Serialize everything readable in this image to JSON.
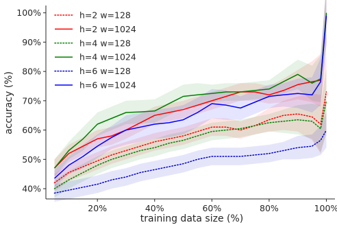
{
  "chart_data": {
    "type": "line",
    "xlabel": "training data size (%)",
    "ylabel": "accuracy (%)",
    "xlim": [
      2,
      103
    ],
    "ylim": [
      36.5,
      102.5
    ],
    "xticks": [
      20,
      40,
      60,
      80,
      100
    ],
    "xtick_labels": [
      "20%",
      "40%",
      "60%",
      "80%",
      "100%"
    ],
    "yticks": [
      40,
      50,
      60,
      70,
      80,
      90,
      100
    ],
    "ytick_labels": [
      "40%",
      "50%",
      "60%",
      "70%",
      "80%",
      "90%",
      "100%"
    ],
    "grid": false,
    "legend_position": "top-left",
    "x": [
      5,
      10,
      15,
      20,
      25,
      30,
      35,
      40,
      45,
      50,
      55,
      60,
      65,
      70,
      75,
      80,
      85,
      90,
      95,
      98,
      100
    ],
    "series": [
      {
        "name": "h=2 w=128",
        "color": "#ff0000",
        "style": "dotted",
        "values": [
          42.0,
          45.5,
          47.5,
          49.5,
          51.5,
          53.0,
          54.5,
          56.0,
          57.0,
          58.0,
          59.5,
          61.0,
          61.0,
          60.0,
          61.5,
          63.5,
          65.0,
          65.5,
          64.5,
          62.0,
          73.0
        ],
        "band": [
          3,
          3,
          3,
          3,
          3,
          3,
          3,
          3,
          3,
          3,
          3,
          3,
          3,
          3,
          3,
          4,
          5,
          6,
          8,
          10,
          14
        ]
      },
      {
        "name": "h=2 w=1024",
        "color": "#ff0000",
        "style": "solid",
        "values": [
          47.0,
          52.0,
          54.5,
          57.0,
          58.0,
          60.0,
          62.5,
          65.0,
          66.0,
          67.0,
          68.5,
          70.0,
          71.5,
          73.0,
          73.0,
          72.0,
          73.5,
          75.5,
          76.5,
          77.0,
          99.5
        ],
        "band": [
          3,
          3,
          3,
          3,
          3,
          3,
          3,
          3,
          3,
          3,
          3,
          3,
          3,
          3,
          3,
          3,
          4,
          5,
          7,
          9,
          10
        ]
      },
      {
        "name": "h=4 w=128",
        "color": "#008000",
        "style": "dotted",
        "values": [
          40.0,
          43.0,
          45.5,
          48.0,
          50.0,
          51.5,
          53.0,
          54.0,
          55.5,
          56.5,
          58.0,
          59.5,
          60.0,
          60.5,
          61.5,
          62.5,
          63.0,
          63.5,
          63.0,
          60.5,
          70.0
        ],
        "band": [
          3,
          3,
          3,
          3,
          3,
          3,
          3,
          3,
          3,
          3,
          3,
          3,
          3,
          3,
          3,
          3,
          4,
          5,
          6,
          8,
          11
        ]
      },
      {
        "name": "h=4 w=1024",
        "color": "#008000",
        "style": "solid",
        "values": [
          47.0,
          53.0,
          57.0,
          62.0,
          64.0,
          66.0,
          66.2,
          66.5,
          69.0,
          71.5,
          72.0,
          72.5,
          73.0,
          73.0,
          73.5,
          74.0,
          76.5,
          79.0,
          76.0,
          77.5,
          100.0
        ],
        "band": [
          3,
          3,
          4,
          4,
          4,
          4,
          4,
          4,
          4,
          4,
          4,
          3,
          3,
          3,
          3,
          3,
          4,
          5,
          6,
          8,
          10
        ]
      },
      {
        "name": "h=6 w=128",
        "color": "#0000cc",
        "style": "dotted",
        "values": [
          38.5,
          39.5,
          40.5,
          41.5,
          43.0,
          44.0,
          45.5,
          46.5,
          47.5,
          48.5,
          50.0,
          51.0,
          51.0,
          51.0,
          51.5,
          52.0,
          53.0,
          54.0,
          54.5,
          56.5,
          60.0
        ],
        "band": [
          3,
          3,
          3,
          3,
          3,
          3,
          3,
          3,
          3,
          3,
          3,
          3,
          3,
          3,
          3,
          3,
          3,
          4,
          4,
          5,
          6
        ]
      },
      {
        "name": "h=6 w=1024",
        "color": "#0000ff",
        "style": "solid",
        "values": [
          43.5,
          48.0,
          51.0,
          54.5,
          57.5,
          60.0,
          61.0,
          62.0,
          62.5,
          63.5,
          66.0,
          69.0,
          68.5,
          67.5,
          69.5,
          71.5,
          72.0,
          72.5,
          72.0,
          76.5,
          99.0
        ],
        "band": [
          3,
          3,
          4,
          4,
          4,
          5,
          5,
          5,
          5,
          5,
          5,
          5,
          5,
          4,
          4,
          4,
          4,
          5,
          6,
          8,
          10
        ]
      }
    ]
  }
}
